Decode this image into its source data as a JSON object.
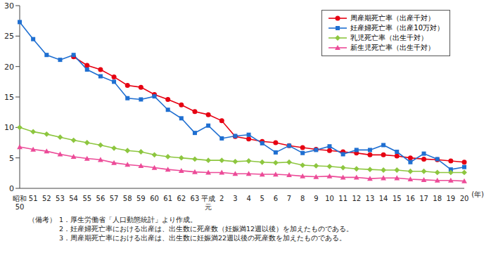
{
  "chart_data": {
    "type": "line",
    "x_label": "(年)",
    "categories": [
      "昭和50",
      "51",
      "52",
      "53",
      "54",
      "55",
      "56",
      "57",
      "58",
      "59",
      "60",
      "61",
      "62",
      "63",
      "平成元",
      "2",
      "3",
      "4",
      "5",
      "6",
      "7",
      "8",
      "9",
      "10",
      "11",
      "12",
      "13",
      "14",
      "15",
      "16",
      "17",
      "18",
      "19",
      "20"
    ],
    "series": [
      {
        "name": "周産期死亡率（出産千対）",
        "color": "#e60012",
        "marker": "circle",
        "values": [
          null,
          null,
          null,
          null,
          21.6,
          20.2,
          19.5,
          18.3,
          16.9,
          16.6,
          15.4,
          14.6,
          13.7,
          12.6,
          12.1,
          11.1,
          8.5,
          8.1,
          7.7,
          7.5,
          7.0,
          6.7,
          6.4,
          6.2,
          6.0,
          5.8,
          5.5,
          5.5,
          5.3,
          5.0,
          4.8,
          4.7,
          4.5,
          4.3
        ]
      },
      {
        "name": "妊産婦死亡率（出産10万対）",
        "color": "#1f6fd1",
        "marker": "square",
        "values": [
          27.3,
          24.5,
          21.9,
          21.1,
          21.9,
          19.5,
          18.4,
          17.5,
          14.8,
          14.6,
          15.1,
          12.9,
          11.5,
          9.1,
          10.3,
          8.2,
          8.6,
          8.8,
          7.4,
          5.9,
          7.0,
          5.8,
          6.3,
          6.9,
          5.6,
          6.3,
          6.3,
          7.1,
          6.0,
          4.3,
          5.7,
          4.8,
          3.1,
          3.5
        ]
      },
      {
        "name": "乳児死亡率（出生千対）",
        "color": "#8dc63f",
        "marker": "diamond",
        "values": [
          10.0,
          9.3,
          8.9,
          8.4,
          7.9,
          7.5,
          7.1,
          6.6,
          6.2,
          6.0,
          5.5,
          5.2,
          5.0,
          4.8,
          4.6,
          4.6,
          4.4,
          4.5,
          4.3,
          4.2,
          4.3,
          3.8,
          3.7,
          3.6,
          3.4,
          3.2,
          3.1,
          3.0,
          3.0,
          2.8,
          2.8,
          2.6,
          2.6,
          2.6
        ]
      },
      {
        "name": "新生児死亡率（出生千対）",
        "color": "#ec4b98",
        "marker": "triangle",
        "values": [
          6.8,
          6.4,
          6.1,
          5.6,
          5.2,
          4.9,
          4.7,
          4.2,
          3.9,
          3.7,
          3.4,
          3.1,
          2.9,
          2.7,
          2.6,
          2.6,
          2.4,
          2.4,
          2.3,
          2.3,
          2.2,
          2.0,
          1.9,
          2.0,
          1.8,
          1.8,
          1.6,
          1.7,
          1.7,
          1.5,
          1.4,
          1.3,
          1.3,
          1.2
        ]
      }
    ],
    "ylim": [
      0,
      30
    ],
    "yticks": [
      0,
      5,
      10,
      15,
      20,
      25,
      30
    ],
    "grid": false,
    "legend": "upper right",
    "notes_heading": "（備考）",
    "notes": [
      "1．厚生労働省「人口動態統計」より作成。",
      "2．妊産婦死亡率における出産は、出生数に死産数（妊娠満12週以後）を加えたものである。",
      "3．周産期死亡率における出産は、出生数に妊娠満22週以後の死産数を加えたものである。"
    ]
  }
}
